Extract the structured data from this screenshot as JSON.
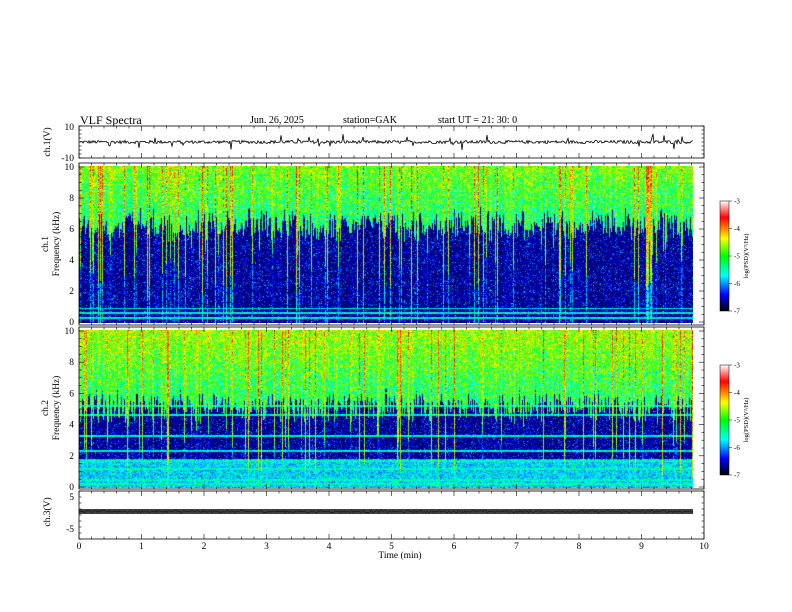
{
  "header": {
    "title": "VLF  Spectra",
    "date": "Jun. 26, 2025",
    "station": "station=GAK",
    "start": "start  UT  =   21: 30: 0"
  },
  "colors": {
    "spectrogram_ramp": [
      "#000020",
      "#00008c",
      "#0000ff",
      "#0096ff",
      "#00ffff",
      "#00ff40",
      "#80ff00",
      "#ffff00",
      "#ff8000",
      "#ff0000"
    ],
    "colorbar": [
      "#000000",
      "#0000ff",
      "#00ffff",
      "#00ff00",
      "#ffff00",
      "#ff0000",
      "#ffffff"
    ]
  },
  "chart_data": [
    {
      "id": "ch1_waveform",
      "type": "line",
      "ylabel": "ch.1(V)",
      "ylim": [
        -10,
        10
      ],
      "yticks": [
        "10",
        "-10"
      ],
      "xlim": [
        0,
        10
      ],
      "series": [
        {
          "baseline": 0,
          "noise_amplitude": 1.0,
          "spike_amplitude": 4
        }
      ]
    },
    {
      "id": "ch1_spectrogram",
      "type": "heatmap",
      "ylabel": "ch.1\nFrequency (kHz)",
      "ylim": [
        0,
        10
      ],
      "yticks": [
        "0",
        "2",
        "4",
        "6",
        "8",
        "10"
      ],
      "xlim": [
        0,
        9.83
      ],
      "colorbar": {
        "label": "log(PSD)(V²/Hz)",
        "range": [
          -7,
          -3
        ],
        "ticks": [
          "-3",
          "-4",
          "-5",
          "-6",
          "-7"
        ]
      },
      "features": {
        "quiet_band_top_kHz": 7.0,
        "tonal_lines_kHz": [
          0.3,
          0.6,
          0.9
        ]
      }
    },
    {
      "id": "ch2_spectrogram",
      "type": "heatmap",
      "ylabel": "ch.2\nFrequency (kHz)",
      "ylim": [
        0,
        10
      ],
      "yticks": [
        "0",
        "2",
        "4",
        "6",
        "8",
        "10"
      ],
      "xlim": [
        0,
        9.83
      ],
      "colorbar": {
        "label": "log(PSD)(V²/Hz)",
        "range": [
          -7,
          -3
        ],
        "ticks": [
          "-3",
          "-4",
          "-5",
          "-6",
          "-7"
        ]
      },
      "features": {
        "quiet_band_top_kHz": 5.9,
        "tonal_lines_kHz": [
          0.2,
          0.5,
          1.2,
          1.7,
          2.3,
          3.3,
          4.6,
          5.2,
          6.0
        ]
      }
    },
    {
      "id": "ch3_waveform",
      "type": "line",
      "ylabel": "ch.3(V)",
      "ylim": [
        -5,
        5
      ],
      "yticks": [
        "5",
        "-5"
      ],
      "xlim": [
        0,
        10
      ],
      "series": [
        {
          "baseline": 0,
          "noise_amplitude": 0.6
        }
      ]
    }
  ],
  "xaxis": {
    "label": "Time  (min)",
    "ticks": [
      "0",
      "1",
      "2",
      "3",
      "4",
      "5",
      "6",
      "7",
      "8",
      "9",
      "10"
    ]
  }
}
